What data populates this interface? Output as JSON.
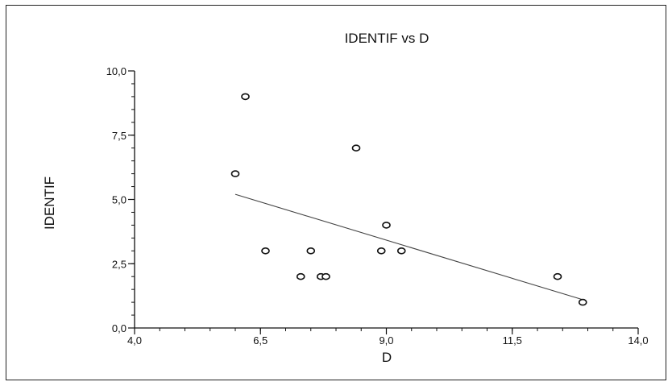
{
  "chart_data": {
    "type": "scatter",
    "title": "IDENTIF vs D",
    "xlabel": "D",
    "ylabel": "IDENTIF",
    "xlim": [
      4.0,
      14.0
    ],
    "ylim": [
      0.0,
      10.0
    ],
    "xticks": [
      4.0,
      6.5,
      9.0,
      11.5,
      14.0
    ],
    "xtick_labels": [
      "4,0",
      "6,5",
      "9,0",
      "11,5",
      "14,0"
    ],
    "yticks": [
      0.0,
      2.5,
      5.0,
      7.5,
      10.0
    ],
    "ytick_labels": [
      "0,0",
      "2,5",
      "5,0",
      "7,5",
      "10,0"
    ],
    "x_minor_step": 0.5,
    "y_minor_step": 0.5,
    "grid": false,
    "legend": "none",
    "points": [
      {
        "x": 6.0,
        "y": 6.0
      },
      {
        "x": 6.2,
        "y": 9.0
      },
      {
        "x": 6.6,
        "y": 3.0
      },
      {
        "x": 7.3,
        "y": 2.0
      },
      {
        "x": 7.5,
        "y": 3.0
      },
      {
        "x": 7.7,
        "y": 2.0
      },
      {
        "x": 7.8,
        "y": 2.0
      },
      {
        "x": 8.4,
        "y": 7.0
      },
      {
        "x": 8.9,
        "y": 3.0
      },
      {
        "x": 9.0,
        "y": 4.0
      },
      {
        "x": 9.3,
        "y": 3.0
      },
      {
        "x": 12.4,
        "y": 2.0
      },
      {
        "x": 12.9,
        "y": 1.0
      }
    ],
    "trendline": {
      "x": [
        6.0,
        12.9
      ],
      "y": [
        5.2,
        1.1
      ]
    },
    "colors": {
      "marker": "#111111",
      "trendline": "#444444",
      "axis": "#111111"
    }
  }
}
